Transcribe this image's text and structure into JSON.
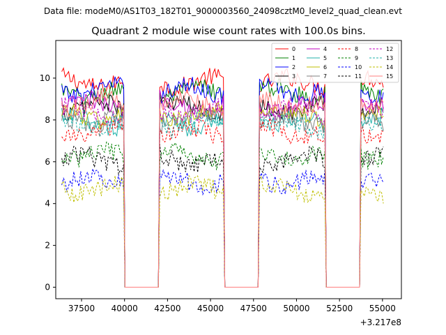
{
  "figure": {
    "suptitle": "Data file: modeM0/AS1T03_182T01_9000003560_24098cztM0_level2_quad_clean.evt",
    "title": "Quadrant 2 module wise count rates with 100.0s bins.",
    "offset_label": "+3.217e8"
  },
  "chart_data": {
    "type": "line",
    "title": "Quadrant 2 module wise count rates with 100.0s bins.",
    "xlabel": "",
    "ylabel": "",
    "x_offset": 321700000,
    "xlim": [
      36000,
      56100
    ],
    "ylim": [
      -0.55,
      11.8
    ],
    "xticks": [
      37500,
      40000,
      42500,
      45000,
      47500,
      50000,
      52500,
      55000
    ],
    "xtick_labels": [
      "37500",
      "40000",
      "42500",
      "45000",
      "47500",
      "50000",
      "52500",
      "55000"
    ],
    "yticks": [
      0,
      2,
      4,
      6,
      8,
      10
    ],
    "ytick_labels": [
      "0",
      "2",
      "4",
      "6",
      "8",
      "10"
    ],
    "bin_seconds": 100,
    "time_segments": [
      {
        "start": 36350,
        "end": 39950,
        "note": "on"
      },
      {
        "start": 39950,
        "end": 42050,
        "note": "gap (rate 0)"
      },
      {
        "start": 42050,
        "end": 45750,
        "note": "on"
      },
      {
        "start": 45750,
        "end": 47850,
        "note": "gap (rate 0)"
      },
      {
        "start": 47850,
        "end": 51650,
        "note": "on"
      },
      {
        "start": 51650,
        "end": 53750,
        "note": "gap (rate 0)"
      },
      {
        "start": 53750,
        "end": 55050,
        "note": "on"
      }
    ],
    "series": [
      {
        "name": "0",
        "color": "#ff0000",
        "style": "solid",
        "mean_rate": 9.8
      },
      {
        "name": "1",
        "color": "#008000",
        "style": "solid",
        "mean_rate": 9.3
      },
      {
        "name": "2",
        "color": "#0000ff",
        "style": "solid",
        "mean_rate": 9.4
      },
      {
        "name": "3",
        "color": "#000000",
        "style": "solid",
        "mean_rate": 8.6
      },
      {
        "name": "4",
        "color": "#c000c0",
        "style": "solid",
        "mean_rate": 8.7
      },
      {
        "name": "5",
        "color": "#20b2aa",
        "style": "solid",
        "mean_rate": 7.9
      },
      {
        "name": "6",
        "color": "#bfbf00",
        "style": "solid",
        "mean_rate": 8.2
      },
      {
        "name": "7",
        "color": "#808080",
        "style": "solid",
        "mean_rate": 8.0
      },
      {
        "name": "8",
        "color": "#ff0000",
        "style": "dashed",
        "mean_rate": 7.4
      },
      {
        "name": "9",
        "color": "#008000",
        "style": "dashed",
        "mean_rate": 6.3
      },
      {
        "name": "10",
        "color": "#0000ff",
        "style": "dashed",
        "mean_rate": 5.1
      },
      {
        "name": "11",
        "color": "#000000",
        "style": "dashed",
        "mean_rate": 6.1
      },
      {
        "name": "12",
        "color": "#c000c0",
        "style": "dashed",
        "mean_rate": 8.4
      },
      {
        "name": "13",
        "color": "#20b2aa",
        "style": "dashed",
        "mean_rate": 7.8
      },
      {
        "name": "14",
        "color": "#bfbf00",
        "style": "dashed",
        "mean_rate": 4.7
      },
      {
        "name": "15",
        "color": "#ff7f7f",
        "style": "solid",
        "mean_rate": 8.8
      }
    ],
    "legend": {
      "location": "top-right",
      "columns": 4
    }
  }
}
